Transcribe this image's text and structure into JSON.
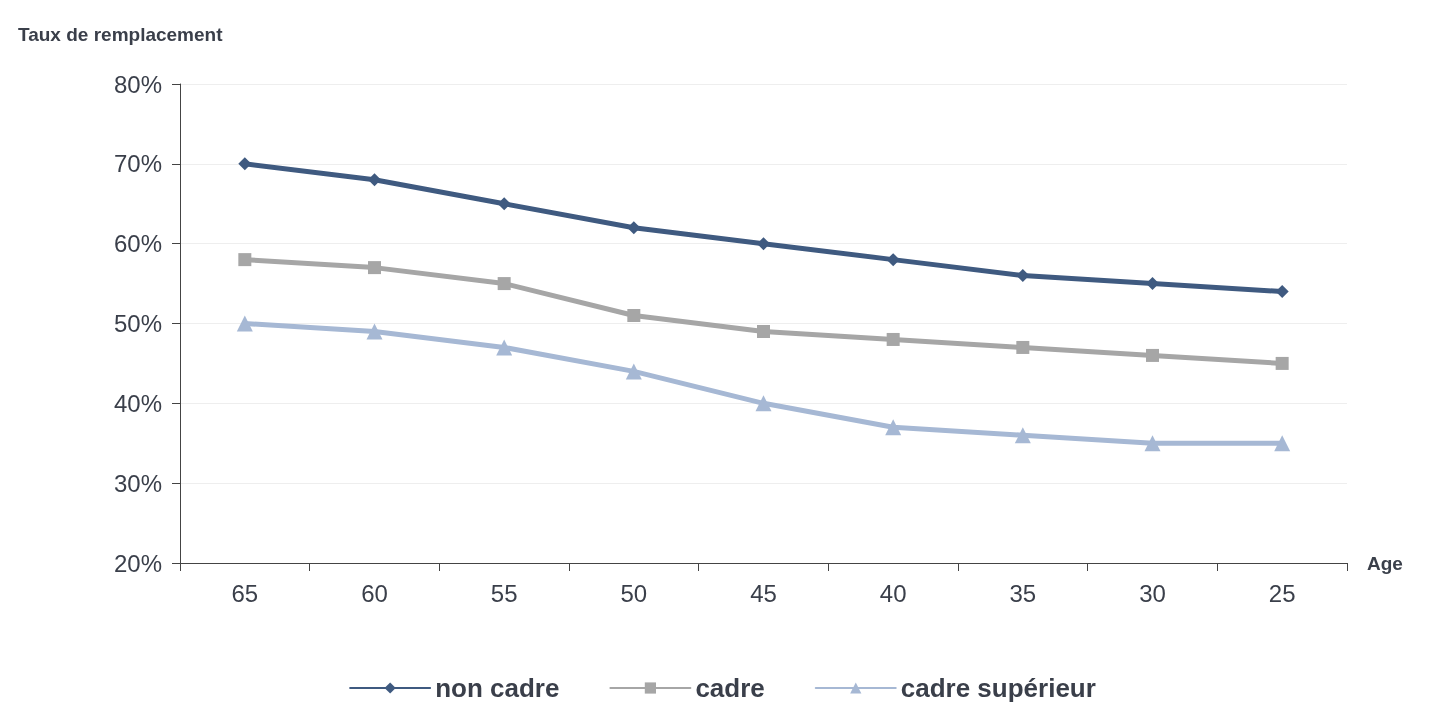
{
  "chart_data": {
    "type": "line",
    "ylabel": "Taux de remplacement",
    "xlabel": "Age",
    "categories": [
      "65",
      "60",
      "55",
      "50",
      "45",
      "40",
      "35",
      "30",
      "25"
    ],
    "series": [
      {
        "name": "non cadre",
        "color": "#3f5a80",
        "marker": "diamond",
        "values": [
          70,
          68,
          65,
          62,
          60,
          58,
          56,
          55,
          54
        ]
      },
      {
        "name": "cadre",
        "color": "#a6a6a6",
        "marker": "square",
        "values": [
          58,
          57,
          55,
          51,
          49,
          48,
          47,
          46,
          45
        ]
      },
      {
        "name": "cadre supérieur",
        "color": "#a6b8d4",
        "marker": "triangle",
        "values": [
          50,
          49,
          47,
          44,
          40,
          37,
          36,
          35,
          35
        ]
      }
    ],
    "ylim": [
      20,
      80
    ],
    "yticks": [
      {
        "value": 20,
        "label": "20%"
      },
      {
        "value": 30,
        "label": "30%"
      },
      {
        "value": 40,
        "label": "40%"
      },
      {
        "value": 50,
        "label": "50%"
      },
      {
        "value": 60,
        "label": "60%"
      },
      {
        "value": 70,
        "label": "70%"
      },
      {
        "value": 80,
        "label": "80%"
      }
    ],
    "grid": "y",
    "legend": "bottom",
    "line_style": "solid"
  }
}
